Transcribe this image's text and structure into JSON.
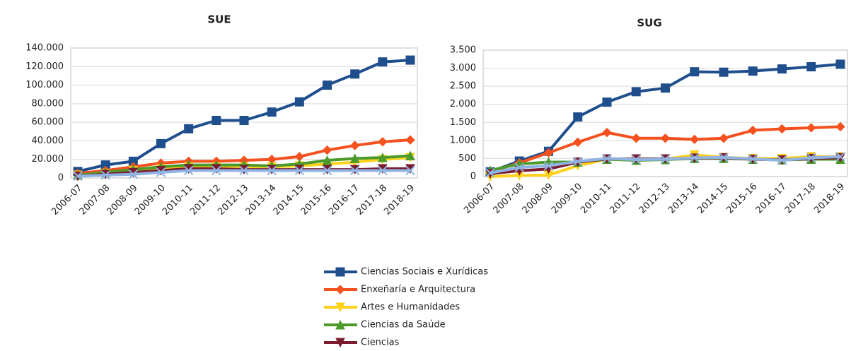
{
  "chart_data": [
    {
      "type": "line",
      "title": "SUE",
      "categories": [
        "2006-07",
        "2007-08",
        "2008-09",
        "2009-10",
        "2010-11",
        "2011-12",
        "2012-13",
        "2013-14",
        "2014-15",
        "2015-16",
        "2016-17",
        "2017-18",
        "2018-19"
      ],
      "ylim": [
        0,
        140000
      ],
      "yticks": [
        0,
        {
          "value": 20000,
          "label": "20.000"
        },
        {
          "value": 40000,
          "label": "40.000"
        },
        {
          "value": 60000,
          "label": "60.000"
        },
        {
          "value": 80000,
          "label": "80.000"
        },
        {
          "value": 100000,
          "label": "100.000"
        },
        {
          "value": 120000,
          "label": "120.000"
        },
        {
          "value": 140000,
          "label": "140.000"
        }
      ],
      "grid": true,
      "series": [
        {
          "name": "Ciencias Sociais e Xurídicas",
          "color": "#1f4e8c",
          "values": [
            7000,
            14000,
            18000,
            37000,
            53000,
            62000,
            62000,
            71000,
            82000,
            100000,
            112000,
            125000,
            127000
          ]
        },
        {
          "name": "Enxeñaría e Arquitectura",
          "color": "#f4511e",
          "values": [
            5000,
            8000,
            12000,
            16000,
            18000,
            18000,
            19000,
            20000,
            23000,
            30000,
            35000,
            39000,
            41000
          ]
        },
        {
          "name": "Artes e Humanidades",
          "color": "#ffd11a",
          "values": [
            3000,
            5000,
            8000,
            10000,
            12000,
            12000,
            12000,
            12000,
            13000,
            15000,
            17000,
            20000,
            22000
          ]
        },
        {
          "name": "Ciencias da Saúde",
          "color": "#4c9a2a",
          "values": [
            3000,
            6000,
            9000,
            12000,
            14000,
            14000,
            14000,
            13000,
            15000,
            19000,
            21000,
            22000,
            24000
          ]
        },
        {
          "name": "Ciencias",
          "color": "#7b1c2e",
          "values": [
            2000,
            4000,
            6000,
            8000,
            10000,
            10000,
            9000,
            9000,
            9000,
            9000,
            9000,
            10000,
            10000
          ]
        },
        {
          "color": "#8fb4e3",
          "values": [
            2000,
            3000,
            4000,
            6000,
            8000,
            8000,
            8000,
            8000,
            8000,
            8000,
            8000,
            8000,
            8000
          ]
        }
      ]
    },
    {
      "type": "line",
      "title": "SUG",
      "categories": [
        "2006-07",
        "2007-08",
        "2008-09",
        "2009-10",
        "2010-11",
        "2011-12",
        "2012-13",
        "2013-14",
        "2014-15",
        "2015-16",
        "2016-17",
        "2017-18",
        "2018-19"
      ],
      "ylim": [
        0,
        3500
      ],
      "yticks": [
        0,
        500,
        {
          "value": 1000,
          "label": "1.000"
        },
        {
          "value": 1500,
          "label": "1.500"
        },
        {
          "value": 2000,
          "label": "2.000"
        },
        {
          "value": 2500,
          "label": "2.500"
        },
        {
          "value": 3000,
          "label": "3.000"
        },
        {
          "value": 3500,
          "label": "3.500"
        }
      ],
      "grid": true,
      "series": [
        {
          "name": "Ciencias Sociais e Xurídicas",
          "color": "#1f4e8c",
          "values": [
            130,
            430,
            700,
            1650,
            2060,
            2350,
            2450,
            2900,
            2890,
            2920,
            2980,
            3040,
            3110
          ]
        },
        {
          "name": "Enxeñaría e Arquitectura",
          "color": "#f4511e",
          "values": [
            130,
            380,
            660,
            950,
            1220,
            1060,
            1060,
            1030,
            1060,
            1280,
            1320,
            1350,
            1380
          ]
        },
        {
          "name": "Artes e Humanidades",
          "color": "#ffd11a",
          "values": [
            0,
            30,
            40,
            300,
            480,
            450,
            480,
            600,
            530,
            500,
            500,
            550,
            550
          ]
        },
        {
          "name": "Ciencias da Saúde",
          "color": "#4c9a2a",
          "values": [
            170,
            350,
            400,
            400,
            480,
            450,
            470,
            500,
            500,
            480,
            460,
            480,
            480
          ]
        },
        {
          "name": "Ciencias",
          "color": "#7b1c2e",
          "values": [
            80,
            160,
            210,
            400,
            490,
            490,
            490,
            510,
            520,
            480,
            460,
            500,
            520
          ]
        },
        {
          "color": "#8fb4e3",
          "values": [
            100,
            250,
            300,
            420,
            500,
            470,
            480,
            520,
            530,
            490,
            450,
            520,
            550
          ]
        }
      ]
    }
  ]
}
